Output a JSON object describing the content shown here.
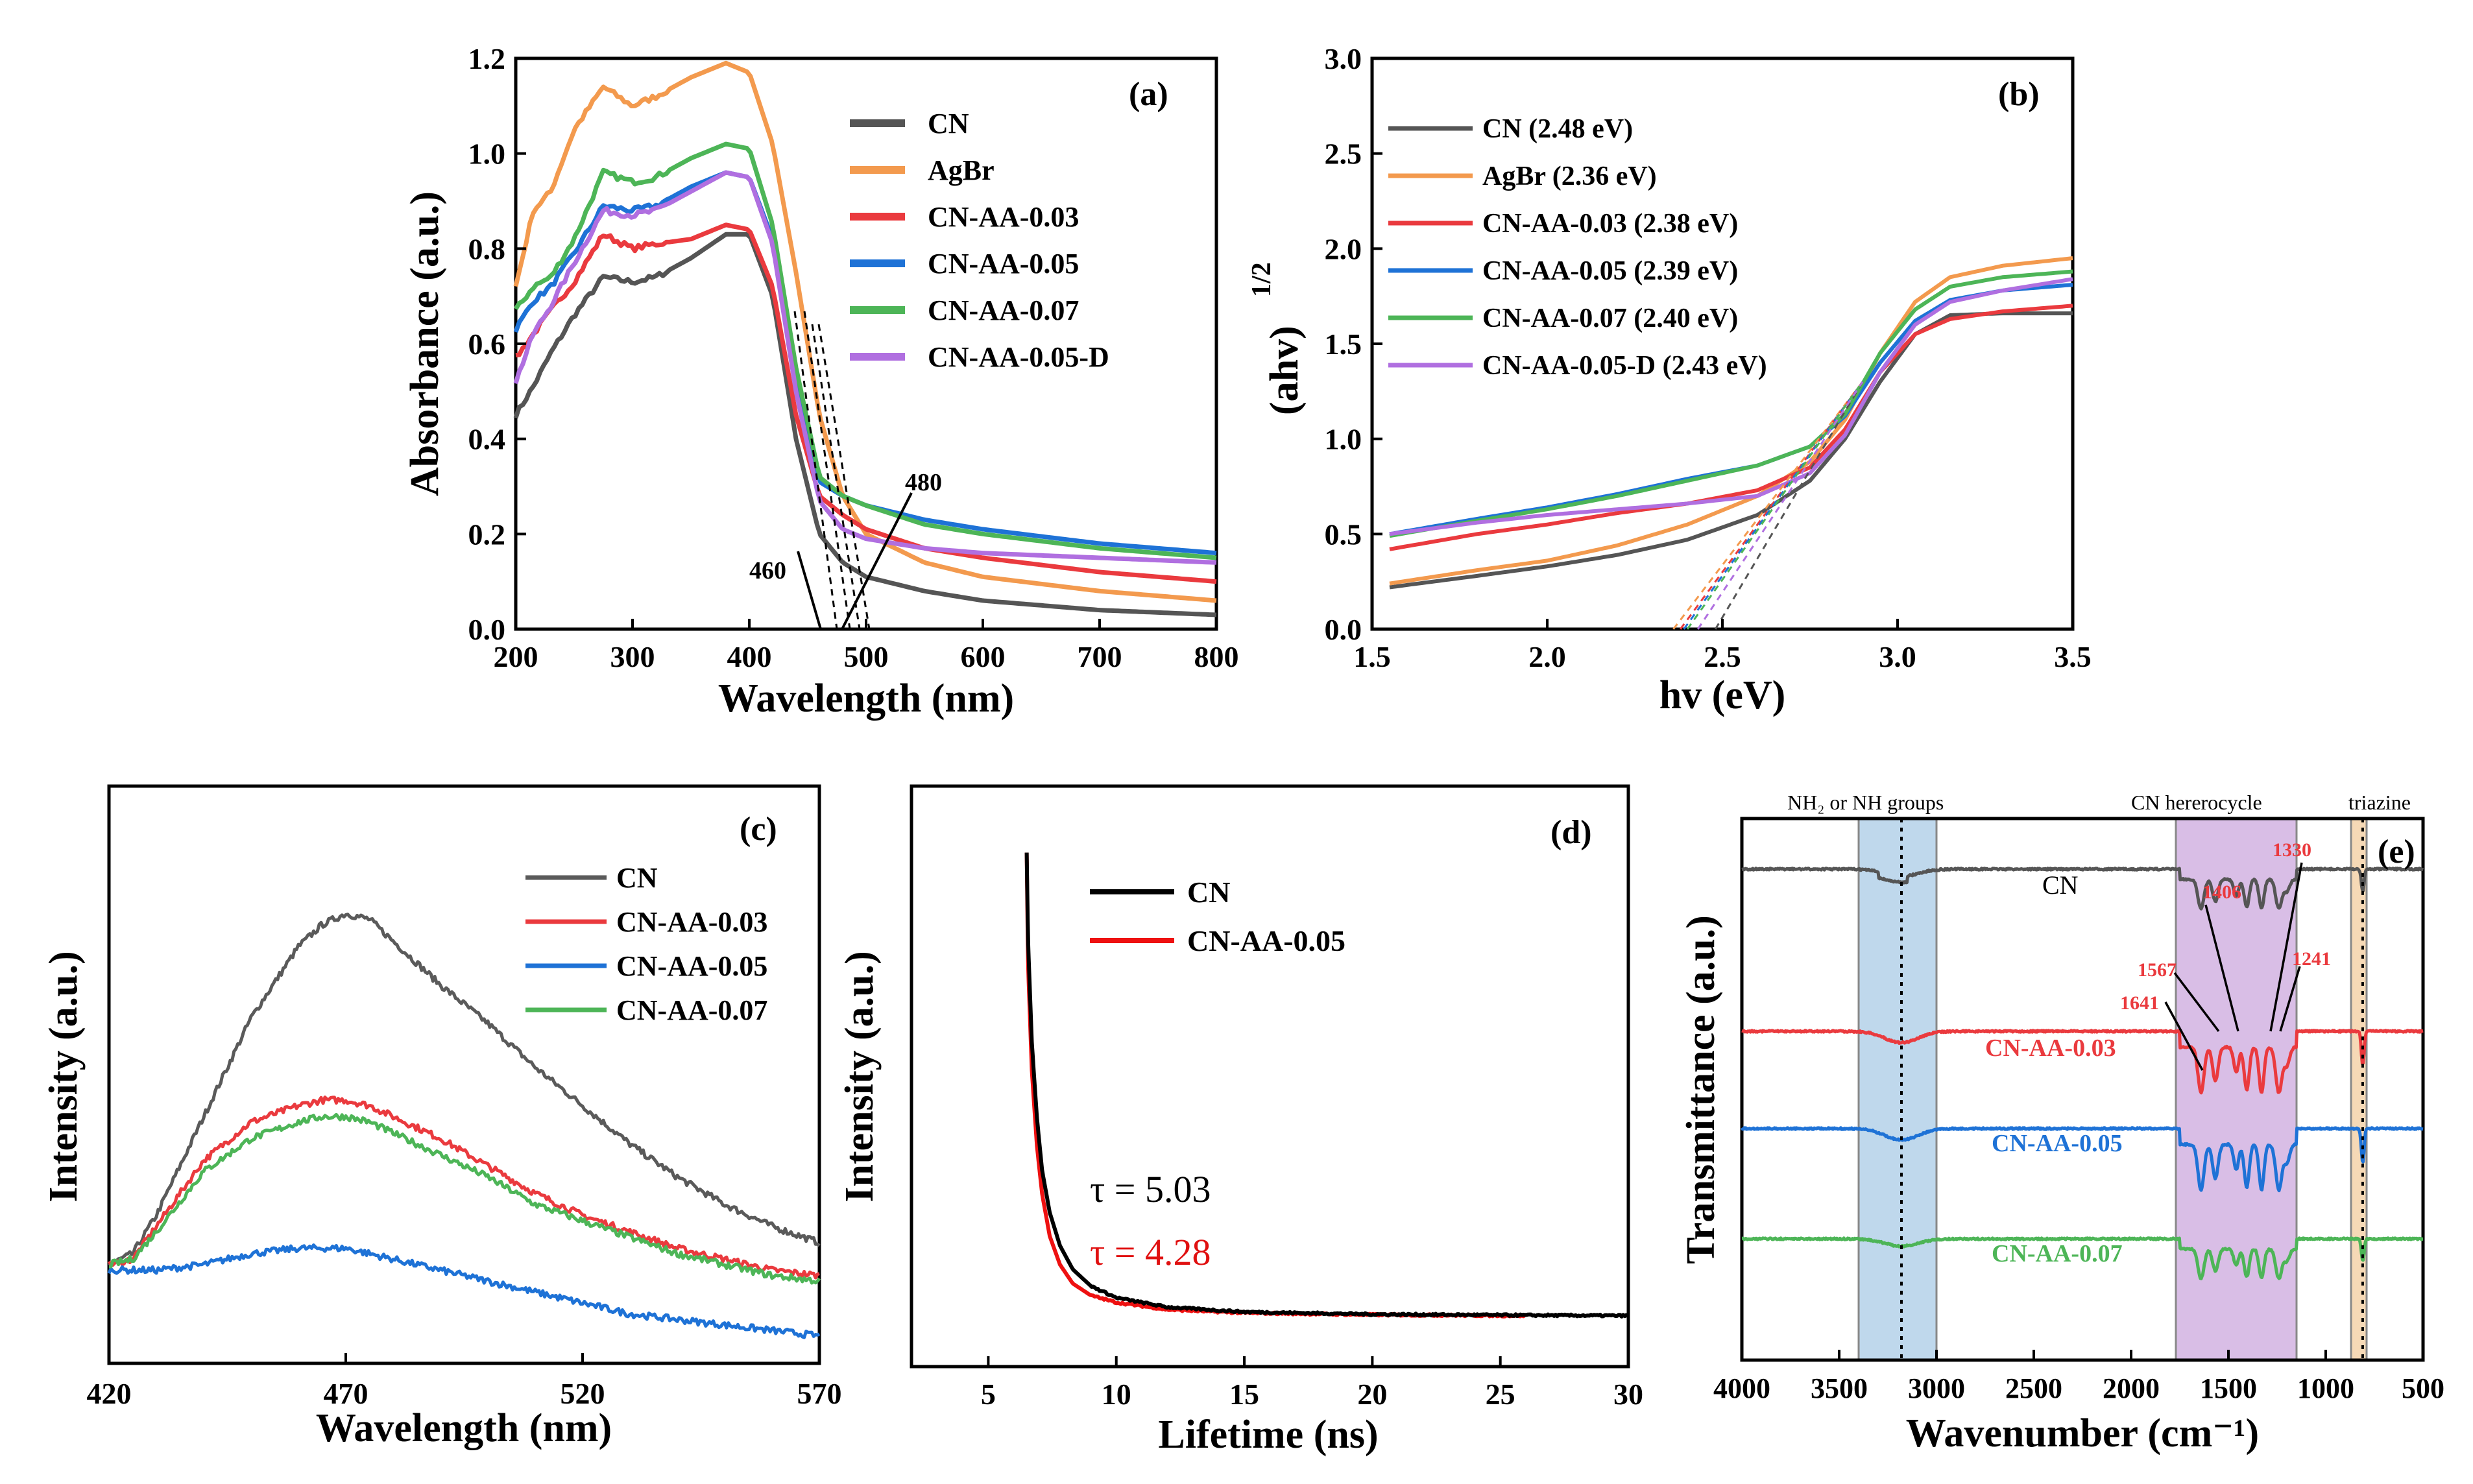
{
  "colors": {
    "CN": "#555555",
    "AgBr": "#F39A4E",
    "CN-AA-0.03": "#EA3A3E",
    "CN-AA-0.05": "#1E72D6",
    "CN-AA-0.07": "#4DB557",
    "CN-AA-0.05-D": "#B06FE0",
    "pl_CN": "#5A5A5A",
    "trpl_CN": "#000000",
    "trpl_AA": "#EE1111",
    "band_NH": "#BFD8EC",
    "band_CN": "#D9BEE6",
    "band_triazine": "#F6D9B6"
  },
  "chart_data": [
    {
      "panel": "(a)",
      "type": "line",
      "xlabel": "Wavelength (nm)",
      "ylabel": "Absorbance (a.u.)",
      "xlim": [
        200,
        800
      ],
      "ylim": [
        0,
        1.2
      ],
      "xticks": [
        "200",
        "300",
        "400",
        "500",
        "600",
        "700",
        "800"
      ],
      "yticks": [
        "0.0",
        "0.2",
        "0.4",
        "0.6",
        "0.8",
        "1.0",
        "1.2"
      ],
      "legend": [
        "CN",
        "AgBr",
        "CN-AA-0.03",
        "CN-AA-0.05",
        "CN-AA-0.07",
        "CN-AA-0.05-D"
      ],
      "annotations": [
        "460",
        "480"
      ],
      "series": [
        {
          "name": "CN",
          "x": [
            200,
            215,
            230,
            250,
            275,
            300,
            320,
            350,
            380,
            400,
            420,
            440,
            460,
            480,
            500,
            550,
            600,
            700,
            800
          ],
          "y": [
            0.45,
            0.51,
            0.58,
            0.66,
            0.74,
            0.73,
            0.74,
            0.78,
            0.83,
            0.83,
            0.7,
            0.4,
            0.2,
            0.14,
            0.11,
            0.08,
            0.06,
            0.04,
            0.03
          ]
        },
        {
          "name": "AgBr",
          "x": [
            200,
            215,
            230,
            250,
            275,
            300,
            320,
            350,
            380,
            400,
            420,
            440,
            460,
            480,
            500,
            550,
            600,
            700,
            800
          ],
          "y": [
            0.72,
            0.88,
            0.92,
            1.05,
            1.14,
            1.1,
            1.12,
            1.16,
            1.19,
            1.17,
            1.02,
            0.75,
            0.45,
            0.28,
            0.2,
            0.14,
            0.11,
            0.08,
            0.06
          ]
        },
        {
          "name": "CN-AA-0.03",
          "x": [
            200,
            215,
            230,
            250,
            275,
            300,
            320,
            350,
            380,
            400,
            420,
            440,
            460,
            480,
            500,
            550,
            600,
            700,
            800
          ],
          "y": [
            0.57,
            0.62,
            0.67,
            0.73,
            0.83,
            0.8,
            0.81,
            0.82,
            0.85,
            0.84,
            0.72,
            0.45,
            0.28,
            0.24,
            0.21,
            0.17,
            0.15,
            0.12,
            0.1
          ]
        },
        {
          "name": "CN-AA-0.05",
          "x": [
            200,
            215,
            230,
            250,
            275,
            300,
            320,
            350,
            380,
            400,
            420,
            440,
            460,
            480,
            500,
            550,
            600,
            700,
            800
          ],
          "y": [
            0.63,
            0.69,
            0.72,
            0.79,
            0.89,
            0.88,
            0.89,
            0.93,
            0.96,
            0.95,
            0.82,
            0.52,
            0.31,
            0.28,
            0.26,
            0.23,
            0.21,
            0.18,
            0.16
          ]
        },
        {
          "name": "CN-AA-0.07",
          "x": [
            200,
            215,
            230,
            250,
            275,
            300,
            320,
            350,
            380,
            400,
            420,
            440,
            460,
            480,
            500,
            550,
            600,
            700,
            800
          ],
          "y": [
            0.67,
            0.72,
            0.74,
            0.82,
            0.96,
            0.94,
            0.95,
            0.99,
            1.02,
            1.01,
            0.85,
            0.55,
            0.32,
            0.28,
            0.26,
            0.22,
            0.2,
            0.17,
            0.15
          ]
        },
        {
          "name": "CN-AA-0.05-D",
          "x": [
            200,
            215,
            230,
            250,
            275,
            300,
            320,
            350,
            380,
            400,
            420,
            440,
            460,
            480,
            500,
            550,
            600,
            700,
            800
          ],
          "y": [
            0.52,
            0.62,
            0.68,
            0.77,
            0.88,
            0.87,
            0.88,
            0.92,
            0.96,
            0.95,
            0.81,
            0.5,
            0.27,
            0.21,
            0.19,
            0.17,
            0.16,
            0.15,
            0.14
          ]
        }
      ]
    },
    {
      "panel": "(b)",
      "type": "line",
      "xlabel": "hv (eV)",
      "ylabel": "(ahv)",
      "ylabel_sup": "1/2",
      "xlim": [
        1.5,
        3.5
      ],
      "ylim": [
        0,
        3.0
      ],
      "xticks": [
        "1.5",
        "2.0",
        "2.5",
        "3.0",
        "3.5"
      ],
      "yticks": [
        "0.0",
        "0.5",
        "1.0",
        "1.5",
        "2.0",
        "2.5",
        "3.0"
      ],
      "legend": [
        "CN (2.48 eV)",
        "AgBr (2.36 eV)",
        "CN-AA-0.03 (2.38 eV)",
        "CN-AA-0.05 (2.39 eV)",
        "CN-AA-0.07 (2.40 eV)",
        "CN-AA-0.05-D (2.43 eV)"
      ],
      "bandgaps_eV": [
        2.48,
        2.36,
        2.38,
        2.39,
        2.4,
        2.43
      ],
      "series": [
        {
          "name": "CN",
          "x": [
            1.55,
            1.8,
            2.0,
            2.2,
            2.4,
            2.6,
            2.75,
            2.85,
            2.95,
            3.05,
            3.15,
            3.3,
            3.5
          ],
          "y": [
            0.22,
            0.28,
            0.33,
            0.39,
            0.47,
            0.6,
            0.78,
            1.0,
            1.3,
            1.55,
            1.65,
            1.66,
            1.66
          ]
        },
        {
          "name": "AgBr",
          "x": [
            1.55,
            1.8,
            2.0,
            2.2,
            2.4,
            2.6,
            2.75,
            2.85,
            2.95,
            3.05,
            3.15,
            3.3,
            3.5
          ],
          "y": [
            0.24,
            0.31,
            0.36,
            0.44,
            0.55,
            0.7,
            0.88,
            1.1,
            1.45,
            1.72,
            1.85,
            1.91,
            1.95
          ]
        },
        {
          "name": "CN-AA-0.03",
          "x": [
            1.55,
            1.8,
            2.0,
            2.2,
            2.4,
            2.6,
            2.75,
            2.85,
            2.95,
            3.05,
            3.15,
            3.3,
            3.5
          ],
          "y": [
            0.42,
            0.5,
            0.55,
            0.61,
            0.66,
            0.73,
            0.85,
            1.05,
            1.35,
            1.55,
            1.63,
            1.67,
            1.7
          ]
        },
        {
          "name": "CN-AA-0.05",
          "x": [
            1.55,
            1.8,
            2.0,
            2.2,
            2.4,
            2.6,
            2.75,
            2.85,
            2.95,
            3.05,
            3.15,
            3.3,
            3.5
          ],
          "y": [
            0.5,
            0.58,
            0.64,
            0.71,
            0.79,
            0.86,
            0.96,
            1.12,
            1.4,
            1.62,
            1.73,
            1.78,
            1.81
          ]
        },
        {
          "name": "CN-AA-0.07",
          "x": [
            1.55,
            1.8,
            2.0,
            2.2,
            2.4,
            2.6,
            2.75,
            2.85,
            2.95,
            3.05,
            3.15,
            3.3,
            3.5
          ],
          "y": [
            0.49,
            0.57,
            0.63,
            0.7,
            0.78,
            0.86,
            0.96,
            1.13,
            1.45,
            1.68,
            1.8,
            1.85,
            1.88
          ]
        },
        {
          "name": "CN-AA-0.05-D",
          "x": [
            1.55,
            1.8,
            2.0,
            2.2,
            2.4,
            2.6,
            2.75,
            2.85,
            2.95,
            3.05,
            3.15,
            3.3,
            3.5
          ],
          "y": [
            0.5,
            0.56,
            0.6,
            0.63,
            0.66,
            0.7,
            0.82,
            1.02,
            1.35,
            1.6,
            1.72,
            1.78,
            1.84
          ]
        }
      ]
    },
    {
      "panel": "(c)",
      "type": "line",
      "xlabel": "Wavelength (nm)",
      "ylabel": "Intensity (a.u.)",
      "xlim": [
        420,
        570
      ],
      "ylim": [
        0,
        1
      ],
      "xticks": [
        "420",
        "470",
        "520",
        "570"
      ],
      "legend": [
        "CN",
        "CN-AA-0.03",
        "CN-AA-0.05",
        "CN-AA-0.07"
      ],
      "series": [
        {
          "name": "CN",
          "x": [
            420,
            425,
            430,
            440,
            450,
            460,
            465,
            470,
            475,
            480,
            490,
            500,
            510,
            520,
            530,
            540,
            550,
            560,
            570
          ],
          "y": [
            0.18,
            0.2,
            0.27,
            0.45,
            0.63,
            0.76,
            0.8,
            0.82,
            0.81,
            0.77,
            0.69,
            0.62,
            0.54,
            0.47,
            0.4,
            0.34,
            0.29,
            0.25,
            0.22
          ]
        },
        {
          "name": "CN-AA-0.03",
          "x": [
            420,
            425,
            430,
            440,
            450,
            460,
            465,
            470,
            475,
            480,
            490,
            500,
            510,
            520,
            530,
            540,
            550,
            560,
            570
          ],
          "y": [
            0.18,
            0.19,
            0.25,
            0.37,
            0.44,
            0.47,
            0.48,
            0.48,
            0.47,
            0.45,
            0.41,
            0.36,
            0.31,
            0.27,
            0.24,
            0.21,
            0.19,
            0.17,
            0.16
          ]
        },
        {
          "name": "CN-AA-0.05",
          "x": [
            420,
            425,
            430,
            440,
            450,
            460,
            465,
            470,
            475,
            480,
            490,
            500,
            510,
            520,
            530,
            540,
            550,
            560,
            570
          ],
          "y": [
            0.17,
            0.17,
            0.17,
            0.18,
            0.2,
            0.21,
            0.21,
            0.21,
            0.2,
            0.19,
            0.17,
            0.15,
            0.13,
            0.11,
            0.09,
            0.08,
            0.07,
            0.06,
            0.05
          ]
        },
        {
          "name": "CN-AA-0.07",
          "x": [
            420,
            425,
            430,
            440,
            450,
            460,
            465,
            470,
            475,
            480,
            490,
            500,
            510,
            520,
            530,
            540,
            550,
            560,
            570
          ],
          "y": [
            0.18,
            0.19,
            0.24,
            0.35,
            0.41,
            0.44,
            0.45,
            0.45,
            0.44,
            0.42,
            0.38,
            0.34,
            0.29,
            0.26,
            0.23,
            0.2,
            0.18,
            0.16,
            0.15
          ]
        }
      ]
    },
    {
      "panel": "(d)",
      "type": "line",
      "xlabel": "Lifetime (ns)",
      "ylabel": "Intensity (a.u.)",
      "xlim": [
        2,
        30
      ],
      "ylim": [
        0,
        1
      ],
      "xticks": [
        "5",
        "10",
        "15",
        "20",
        "25",
        "30"
      ],
      "legend": [
        "CN",
        "CN-AA-0.05"
      ],
      "annotations": [
        "τ = 5.03",
        "τ = 4.28"
      ],
      "series": [
        {
          "name": "CN",
          "x": [
            6.5,
            6.55,
            6.7,
            6.9,
            7.1,
            7.4,
            7.8,
            8.3,
            9.0,
            10.0,
            12.0,
            15.0,
            20.0,
            26.0,
            30.0
          ],
          "y": [
            0.98,
            0.8,
            0.58,
            0.42,
            0.31,
            0.22,
            0.15,
            0.1,
            0.065,
            0.04,
            0.02,
            0.01,
            0.005,
            0.003,
            0.002
          ]
        },
        {
          "name": "CN-AA-0.05",
          "x": [
            6.5,
            6.55,
            6.7,
            6.9,
            7.1,
            7.4,
            7.8,
            8.3,
            9.0,
            10.0,
            12.0,
            15.0,
            20.0,
            26.0
          ],
          "y": [
            0.98,
            0.75,
            0.52,
            0.36,
            0.26,
            0.17,
            0.11,
            0.07,
            0.045,
            0.03,
            0.015,
            0.008,
            0.004,
            0.002
          ]
        }
      ]
    },
    {
      "panel": "(e)",
      "type": "line",
      "xlabel": "Wavenumber (cm⁻¹)",
      "ylabel": "Transmittance (a.u.)",
      "xlim": [
        4000,
        500
      ],
      "xticks": [
        "4000",
        "3500",
        "3000",
        "2500",
        "2000",
        "1500",
        "1000",
        "500"
      ],
      "bands": [
        "NH₂ or NH groups",
        "CN hererocycle",
        "triazine"
      ],
      "band_ranges": [
        [
          3400,
          3000
        ],
        [
          1770,
          1150
        ],
        [
          870,
          790
        ]
      ],
      "peak_labels": [
        "1641",
        "1567",
        "1406",
        "1330",
        "1241"
      ],
      "curve_labels": [
        "CN",
        "CN-AA-0.03",
        "CN-AA-0.05",
        "CN-AA-0.07"
      ],
      "series": [
        {
          "name": "CN",
          "offset": 0
        },
        {
          "name": "CN-AA-0.03",
          "offset": 1
        },
        {
          "name": "CN-AA-0.05",
          "offset": 2
        },
        {
          "name": "CN-AA-0.07",
          "offset": 3
        }
      ]
    }
  ]
}
